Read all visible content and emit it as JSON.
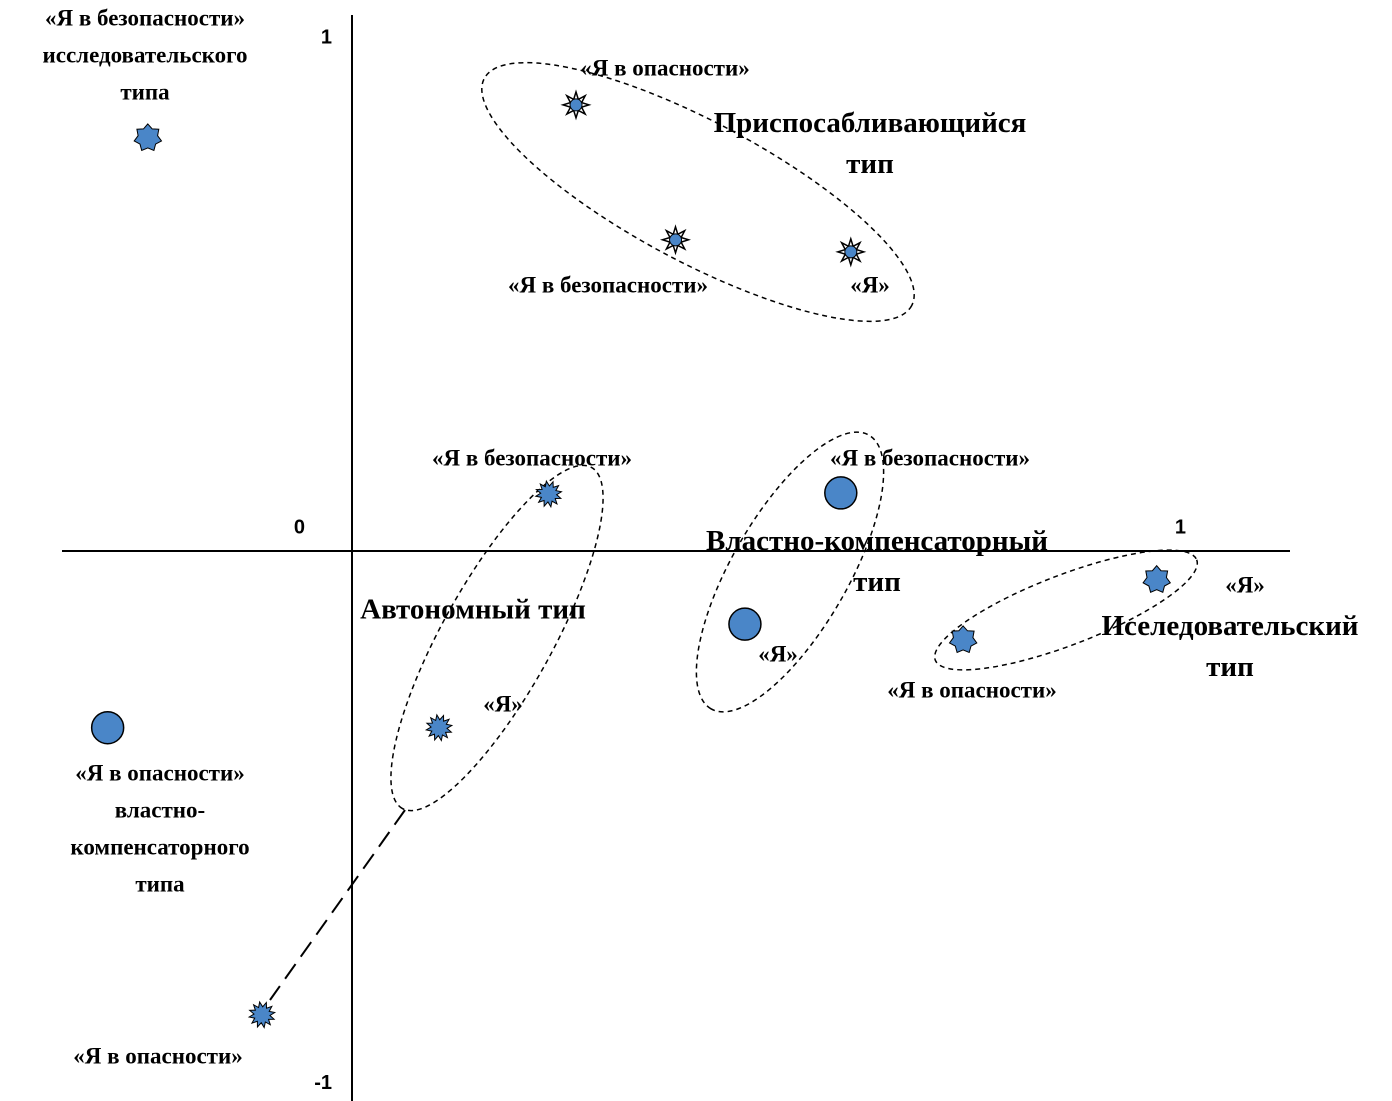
{
  "chart_data": {
    "type": "scatter",
    "xlim": [
      -0.317,
      1.028
    ],
    "ylim": [
      -1.05,
      1.025
    ],
    "xticks": [
      0,
      1
    ],
    "yticks": [
      -1,
      1
    ],
    "series": [
      {
        "name": "Приспосабливающийся тип",
        "marker": "star8",
        "color": "#4a86c8",
        "x": [
          0.547,
          0.355,
          0.246
        ],
        "values": [
          0.572,
          0.595,
          0.853
        ],
        "labels": [
          [
            "«Я»"
          ],
          [
            "«Я в безопасности»"
          ],
          [
            "«Я в опасности»"
          ]
        ]
      },
      {
        "name": "Автономный тип",
        "marker": "puzzle",
        "color": "#4a86c8",
        "x": [
          0.096,
          0.216,
          -0.098
        ],
        "values": [
          -0.338,
          0.109,
          -0.887
        ],
        "labels": [
          [
            "«Я»"
          ],
          [
            "«Я в безопасности»"
          ],
          [
            "«Я в опасности»"
          ]
        ]
      },
      {
        "name": "Властно-компенсаторный тип",
        "marker": "circle",
        "color": "#4a86c8",
        "x": [
          0.431,
          0.536,
          -0.267
        ],
        "values": [
          -0.14,
          0.111,
          -0.338
        ],
        "labels": [
          [
            "«Я»"
          ],
          [
            "«Я в безопасности»"
          ],
          [
            "«Я в опасности»",
            "властно-",
            "компенсаторного",
            "типа"
          ]
        ]
      },
      {
        "name": "Иселедовательский тип",
        "marker": "star7",
        "color": "#4a86c8",
        "x": [
          0.882,
          -0.223,
          0.67
        ],
        "values": [
          -0.055,
          0.79,
          -0.17
        ],
        "labels": [
          [
            "«Я»"
          ],
          [
            "«Я в безопасности»",
            "исследовательского",
            "типа"
          ],
          [
            "«Я в опасности»"
          ]
        ]
      }
    ]
  }
}
